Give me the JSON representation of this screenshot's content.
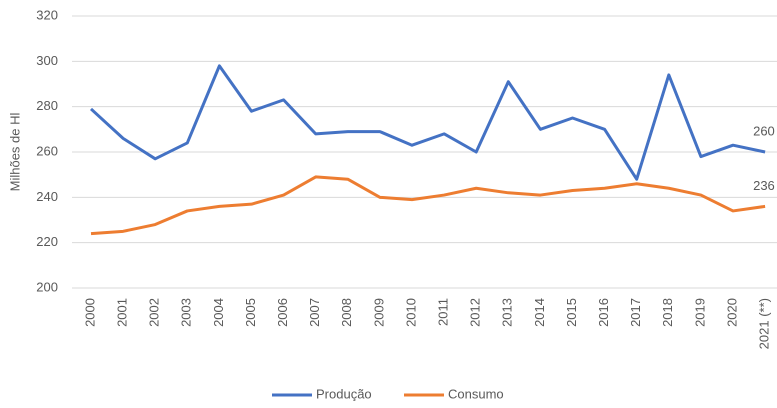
{
  "chart_data": {
    "type": "line",
    "y_label": "Milhões de Hl",
    "categories": [
      "2000",
      "2001",
      "2002",
      "2003",
      "2004",
      "2005",
      "2006",
      "2007",
      "2008",
      "2009",
      "2010",
      "2011",
      "2012",
      "2013",
      "2014",
      "2015",
      "2016",
      "2017",
      "2018",
      "2019",
      "2020",
      "2021 (**)"
    ],
    "series": [
      {
        "name": "Produção",
        "color": "#4472c4",
        "values": [
          279,
          266,
          257,
          264,
          298,
          278,
          283,
          268,
          269,
          269,
          263,
          268,
          260,
          291,
          270,
          275,
          270,
          248,
          294,
          258,
          263,
          260
        ]
      },
      {
        "name": "Consumo",
        "color": "#ed7d31",
        "values": [
          224,
          225,
          228,
          234,
          236,
          237,
          241,
          249,
          248,
          240,
          239,
          241,
          244,
          242,
          241,
          243,
          244,
          246,
          244,
          241,
          234,
          236
        ]
      }
    ],
    "ylim": [
      200,
      320
    ],
    "yticks": [
      200,
      220,
      240,
      260,
      280,
      300,
      320
    ],
    "grid": true,
    "legend": "bottom"
  }
}
